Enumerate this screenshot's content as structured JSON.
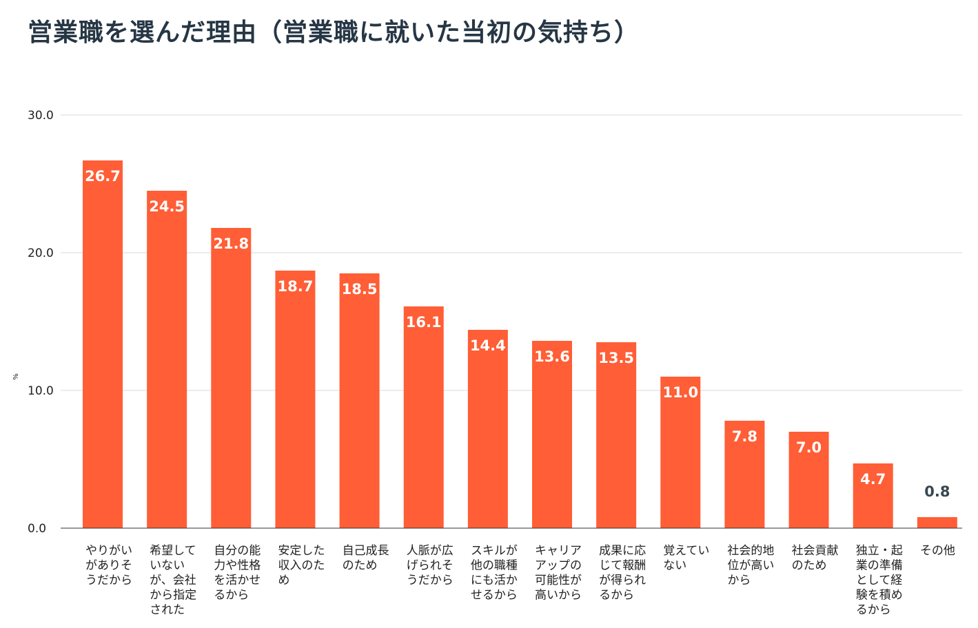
{
  "chart_data": {
    "type": "bar",
    "title": "営業職を選んだ理由（営業職に就いた当初の気持ち）",
    "ylabel": "%",
    "xlabel": "",
    "ylim": [
      0,
      30
    ],
    "yticks": [
      "0.0",
      "10.0",
      "20.0",
      "30.0"
    ],
    "grid": true,
    "bar_color": "#ff5e36",
    "categories": [
      [
        "やりがい",
        "がありそ",
        "うだから"
      ],
      [
        "希望して",
        "いない",
        "が、会社",
        "から指定",
        "された"
      ],
      [
        "自分の能",
        "力や性格",
        "を活かせ",
        "るから"
      ],
      [
        "安定した",
        "収入のた",
        "め"
      ],
      [
        "自己成長",
        "のため"
      ],
      [
        "人脈が広",
        "げられそ",
        "うだから"
      ],
      [
        "スキルが",
        "他の職種",
        "にも活か",
        "せるから"
      ],
      [
        "キャリア",
        "アップの",
        "可能性が",
        "高いから"
      ],
      [
        "成果に応",
        "じて報酬",
        "が得られ",
        "るから"
      ],
      [
        "覚えてい",
        "ない"
      ],
      [
        "社会的地",
        "位が高い",
        "から"
      ],
      [
        "社会貢献",
        "のため"
      ],
      [
        "独立・起",
        "業の準備",
        "として経",
        "験を積め",
        "るから"
      ],
      [
        "その他"
      ]
    ],
    "values": [
      26.7,
      24.5,
      21.8,
      18.7,
      18.5,
      16.1,
      14.4,
      13.6,
      13.5,
      11.0,
      7.8,
      7.0,
      4.7,
      0.8
    ],
    "value_labels": [
      "26.7",
      "24.5",
      "21.8",
      "18.7",
      "18.5",
      "16.1",
      "14.4",
      "13.6",
      "13.5",
      "11.0",
      "7.8",
      "7.0",
      "4.7",
      "0.8"
    ]
  }
}
